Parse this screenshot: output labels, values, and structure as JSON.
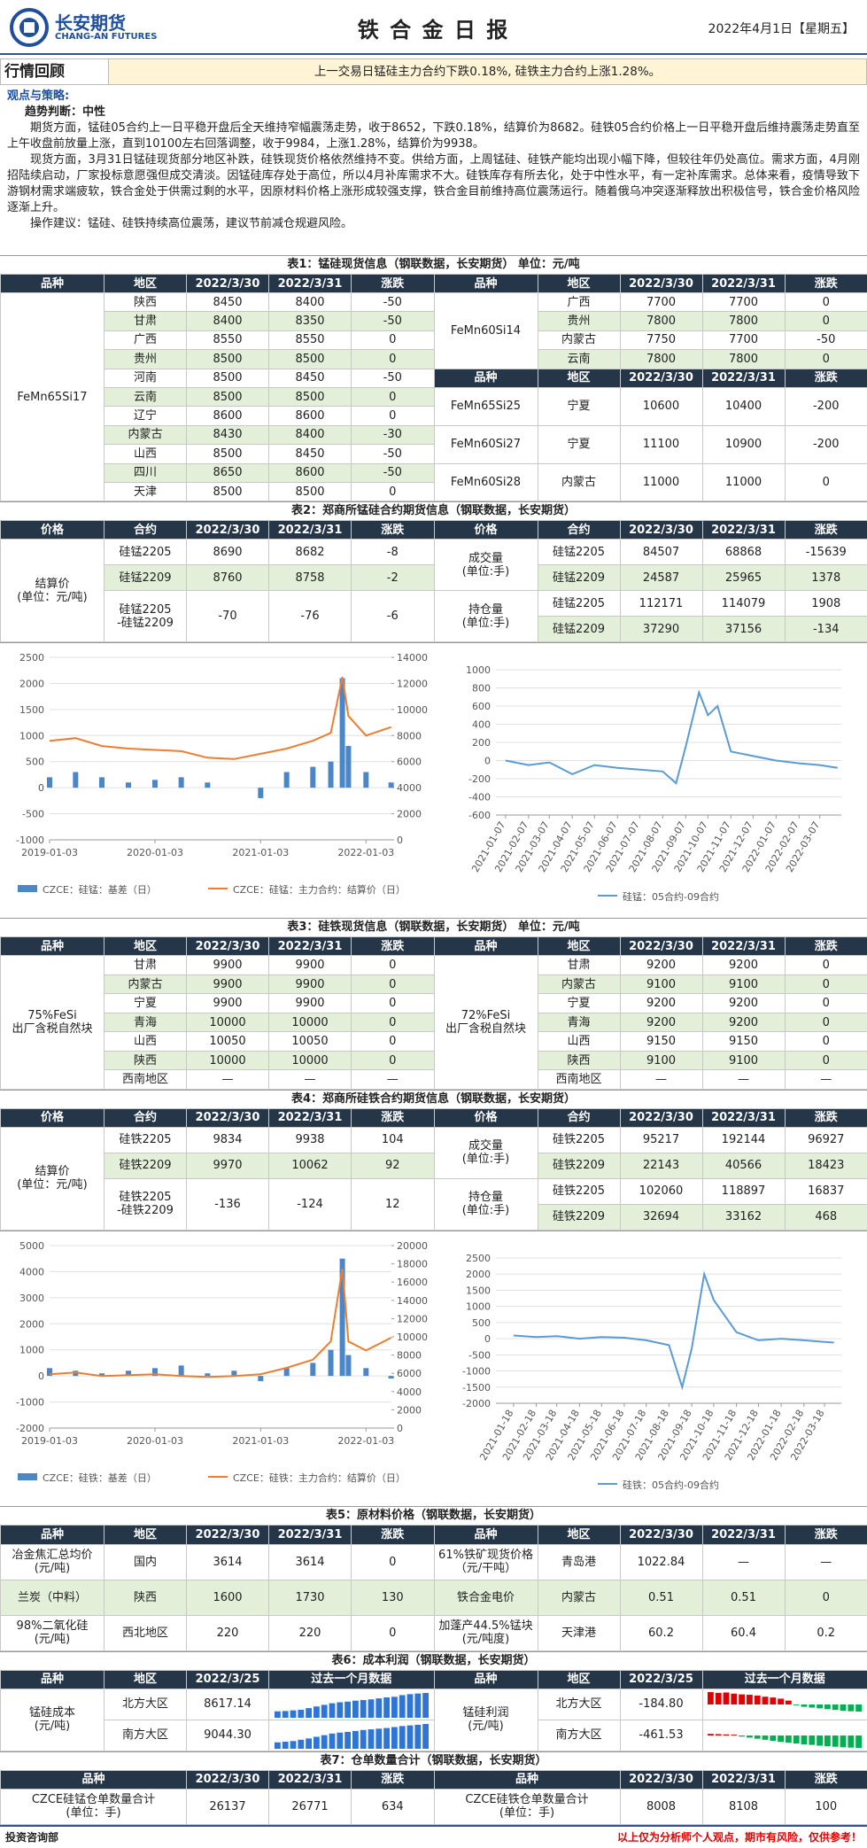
{
  "header": {
    "logo_cn": "长安期货",
    "logo_en": "CHANG-AN FUTURES",
    "title": "铁 合 金 日 报",
    "date": "2022年4月1日【星期五】"
  },
  "review": {
    "label": "行情回顾",
    "summary": "上一交易日锰硅主力合约下跌0.18%, 硅铁主力合约上涨1.28%。"
  },
  "views": {
    "heading": "观点与策略:",
    "judgement_label": "趋势判断：",
    "judgement": "中性",
    "paragraphs": [
      "期货方面，锰硅05合约上一日平稳开盘后全天维持窄幅震荡走势，收于8652，下跌0.18%，结算价为8682。硅铁05合约价格上一日平稳开盘后维持震荡走势直至上午收盘前放量上涨，直到10100左右回落调整，收于9984，上涨1.28%，结算价为9938。",
      "现货方面，3月31日锰硅现货部分地区补跌，硅铁现货价格依然维持不变。供给方面，上周锰硅、硅铁产能均出现小幅下降，但较往年仍处高位。需求方面，4月刚招陆续启动，厂家投标意愿强但成交清淡。因锰硅库存处于高位，所以4月补库需求不大。硅铁库存有所去化，处于中性水平，有一定补库需求。总体来看，疫情导致下游钢材需求端疲软，铁合金处于供需过剩的水平，因原材料价格上涨形成较强支撑，铁合金目前维持高位震荡运行。随着俄乌冲突逐渐释放出积极信号，铁合金价格风险逐渐上升。",
      "操作建议：锰硅、硅铁持续高位震荡，建议节前减仓规避风险。"
    ]
  },
  "table1": {
    "caption": "表1：锰硅现货信息（钢联数据，长安期货）  单位：元/吨",
    "header": [
      "品种",
      "地区",
      "2022/3/30",
      "2022/3/31",
      "涨跌"
    ],
    "left": {
      "product": "FeMn65Si17",
      "rows": [
        [
          "陕西",
          8450,
          8400,
          -50
        ],
        [
          "甘肃",
          8400,
          8350,
          -50
        ],
        [
          "广西",
          8550,
          8550,
          0
        ],
        [
          "贵州",
          8500,
          8500,
          0
        ],
        [
          "河南",
          8500,
          8450,
          -50
        ],
        [
          "云南",
          8500,
          8500,
          0
        ],
        [
          "辽宁",
          8600,
          8600,
          0
        ],
        [
          "内蒙古",
          8430,
          8400,
          -30
        ],
        [
          "山西",
          8500,
          8450,
          -50
        ],
        [
          "四川",
          8650,
          8600,
          -50
        ],
        [
          "天津",
          8500,
          8500,
          0
        ]
      ]
    },
    "right_top": {
      "product": "FeMn60Si14",
      "rows": [
        [
          "广西",
          7700,
          7700,
          0
        ],
        [
          "贵州",
          7800,
          7800,
          0
        ],
        [
          "内蒙古",
          7750,
          7700,
          -50
        ],
        [
          "云南",
          7800,
          7800,
          0
        ]
      ]
    },
    "right_bottom": [
      {
        "product": "FeMn65Si25",
        "rows": [
          [
            "宁夏",
            10600,
            10400,
            -200
          ]
        ]
      },
      {
        "product": "FeMn60Si27",
        "rows": [
          [
            "宁夏",
            11100,
            10900,
            -200
          ]
        ]
      },
      {
        "product": "FeMn60Si28",
        "rows": [
          [
            "内蒙古",
            11000,
            11000,
            0
          ]
        ]
      }
    ]
  },
  "table2": {
    "caption": "表2：郑商所锰硅合约期货信息（钢联数据，长安期货）",
    "header": [
      "价格",
      "合约",
      "2022/3/30",
      "2022/3/31",
      "涨跌"
    ],
    "left": {
      "label": "结算价\n(单位：元/吨)",
      "rows": [
        [
          "硅锰2205",
          8690,
          8682,
          -8
        ],
        [
          "硅锰2209",
          8760,
          8758,
          -2
        ],
        [
          "硅锰2205\n-硅锰2209",
          -70,
          -76,
          -6
        ]
      ]
    },
    "right": [
      {
        "label": "成交量\n(单位:手)",
        "rows": [
          [
            "硅锰2205",
            84507,
            68868,
            -15639
          ],
          [
            "硅锰2209",
            24587,
            25965,
            1378
          ]
        ]
      },
      {
        "label": "持仓量\n(单位:手)",
        "rows": [
          [
            "硅锰2205",
            112171,
            114079,
            1908
          ],
          [
            "硅锰2209",
            37290,
            37156,
            -134
          ]
        ]
      }
    ]
  },
  "charts": [
    {
      "type": "combo",
      "xlim": [
        "2019-01-03",
        "2022-04-01"
      ],
      "xticks": [
        "2019-01-03",
        "2020-01-03",
        "2021-01-03",
        "2022-01-03"
      ],
      "ylim": [
        -1000,
        2500
      ],
      "yticks": [
        -1000,
        -500,
        0,
        500,
        1000,
        1500,
        2000,
        2500
      ],
      "y2lim": [
        0,
        14000
      ],
      "y2ticks": [
        0,
        2000,
        4000,
        6000,
        8000,
        10000,
        12000,
        14000
      ],
      "grid": true,
      "x": [
        "2019-01-03",
        "2019-04-03",
        "2019-07-03",
        "2019-10-03",
        "2020-01-03",
        "2020-04-03",
        "2020-07-03",
        "2020-10-03",
        "2021-01-03",
        "2021-04-03",
        "2021-07-03",
        "2021-09-03",
        "2021-10-13",
        "2021-11-03",
        "2022-01-03",
        "2022-03-31"
      ],
      "series": [
        {
          "name": "CZCE：硅锰：基差（日）",
          "type": "bar",
          "color": "#4a86c8",
          "values": [
            200,
            300,
            200,
            100,
            150,
            200,
            100,
            0,
            -200,
            300,
            400,
            500,
            2100,
            800,
            300,
            100
          ]
        },
        {
          "name": "CZCE：硅锰：主力合约：结算价（日）",
          "type": "line",
          "axis": "y2",
          "color": "#ed7d31",
          "values": [
            7600,
            7800,
            7200,
            7000,
            6900,
            6800,
            6300,
            6200,
            6600,
            7000,
            7600,
            8200,
            12500,
            9500,
            8000,
            8650
          ]
        }
      ]
    },
    {
      "type": "line",
      "xlim": [
        "2020-12-25",
        "2022-04-05"
      ],
      "xticks": [
        "2021-01-07",
        "2021-02-07",
        "2021-03-07",
        "2021-04-07",
        "2021-05-07",
        "2021-06-07",
        "2021-07-07",
        "2021-08-07",
        "2021-09-07",
        "2021-10-07",
        "2021-11-07",
        "2021-12-07",
        "2022-01-07",
        "2022-02-07",
        "2022-03-07"
      ],
      "ylim": [
        -600,
        1000
      ],
      "yticks": [
        -600,
        -400,
        -200,
        0,
        200,
        400,
        600,
        800,
        1000
      ],
      "grid": true,
      "x": [
        "2021-01-07",
        "2021-02-07",
        "2021-03-07",
        "2021-04-07",
        "2021-05-07",
        "2021-06-07",
        "2021-07-07",
        "2021-08-07",
        "2021-08-25",
        "2021-09-07",
        "2021-09-25",
        "2021-10-07",
        "2021-10-20",
        "2021-11-07",
        "2021-12-07",
        "2022-01-07",
        "2022-02-07",
        "2022-03-07",
        "2022-03-31"
      ],
      "series": [
        {
          "name": "硅锰：05合约-09合约",
          "color": "#5b9bd5",
          "values": [
            0,
            -50,
            -20,
            -150,
            -50,
            -80,
            -100,
            -120,
            -250,
            150,
            750,
            500,
            600,
            100,
            50,
            0,
            -30,
            -50,
            -80
          ]
        }
      ]
    },
    {
      "type": "combo",
      "xlim": [
        "2019-01-03",
        "2022-04-01"
      ],
      "xticks": [
        "2019-01-03",
        "2020-01-03",
        "2021-01-03",
        "2022-01-03"
      ],
      "ylim": [
        -2000,
        5000
      ],
      "yticks": [
        -2000,
        -1000,
        0,
        1000,
        2000,
        3000,
        4000,
        5000
      ],
      "y2lim": [
        0,
        20000
      ],
      "y2ticks": [
        0,
        2000,
        4000,
        6000,
        8000,
        10000,
        12000,
        14000,
        16000,
        18000,
        20000
      ],
      "grid": true,
      "x": [
        "2019-01-03",
        "2019-04-03",
        "2019-07-03",
        "2019-10-03",
        "2020-01-03",
        "2020-04-03",
        "2020-07-03",
        "2020-10-03",
        "2021-01-03",
        "2021-04-03",
        "2021-07-03",
        "2021-09-03",
        "2021-10-13",
        "2021-11-03",
        "2022-01-03",
        "2022-03-31"
      ],
      "series": [
        {
          "name": "CZCE：硅铁：基差（日）",
          "type": "bar",
          "color": "#4a86c8",
          "values": [
            300,
            200,
            100,
            200,
            300,
            400,
            100,
            200,
            -200,
            300,
            500,
            1000,
            4500,
            800,
            300,
            -100
          ]
        },
        {
          "name": "CZCE：硅铁：主力合约：结算价（日）",
          "type": "line",
          "axis": "y2",
          "color": "#ed7d31",
          "values": [
            5900,
            6100,
            5700,
            5800,
            5900,
            5700,
            5600,
            5700,
            5900,
            6600,
            7500,
            9500,
            17500,
            9500,
            8500,
            9900
          ]
        }
      ]
    },
    {
      "type": "line",
      "xlim": [
        "2020-12-25",
        "2022-04-10"
      ],
      "xticks": [
        "2021-01-18",
        "2021-02-18",
        "2021-03-18",
        "2021-04-18",
        "2021-05-18",
        "2021-06-18",
        "2021-07-18",
        "2021-08-18",
        "2021-09-18",
        "2021-10-18",
        "2021-11-18",
        "2021-12-18",
        "2022-01-18",
        "2022-02-18",
        "2022-03-18"
      ],
      "ylim": [
        -2000,
        2500
      ],
      "yticks": [
        -2000,
        -1500,
        -1000,
        -500,
        0,
        500,
        1000,
        1500,
        2000,
        2500
      ],
      "grid": true,
      "x": [
        "2021-01-18",
        "2021-02-18",
        "2021-03-18",
        "2021-04-18",
        "2021-05-18",
        "2021-06-18",
        "2021-07-18",
        "2021-08-18",
        "2021-09-05",
        "2021-09-18",
        "2021-10-05",
        "2021-10-18",
        "2021-11-18",
        "2021-12-18",
        "2022-01-18",
        "2022-02-18",
        "2022-03-18",
        "2022-03-31"
      ],
      "series": [
        {
          "name": "硅铁：05合约-09合约",
          "color": "#5b9bd5",
          "values": [
            100,
            50,
            80,
            0,
            50,
            30,
            -50,
            -200,
            -1500,
            -300,
            2000,
            1200,
            200,
            -50,
            0,
            -50,
            -100,
            -120
          ]
        }
      ]
    }
  ],
  "table3": {
    "caption": "表3：硅铁现货信息（钢联数据，长安期货）  单位：元/吨",
    "header": [
      "品种",
      "地区",
      "2022/3/30",
      "2022/3/31",
      "涨跌"
    ],
    "left": {
      "product": "75%FeSi\n出厂含税自然块",
      "rows": [
        [
          "甘肃",
          9900,
          9900,
          0
        ],
        [
          "内蒙古",
          9900,
          9900,
          0
        ],
        [
          "宁夏",
          9900,
          9900,
          0
        ],
        [
          "青海",
          10000,
          10000,
          0
        ],
        [
          "山西",
          10050,
          10050,
          0
        ],
        [
          "陕西",
          10000,
          10000,
          0
        ],
        [
          "西南地区",
          "—",
          "—",
          "—"
        ]
      ]
    },
    "right": {
      "product": "72%FeSi\n出厂含税自然块",
      "rows": [
        [
          "甘肃",
          9200,
          9200,
          0
        ],
        [
          "内蒙古",
          9100,
          9100,
          0
        ],
        [
          "宁夏",
          9200,
          9200,
          0
        ],
        [
          "青海",
          9200,
          9200,
          0
        ],
        [
          "山西",
          9150,
          9150,
          0
        ],
        [
          "陕西",
          9100,
          9100,
          0
        ],
        [
          "西南地区",
          "—",
          "—",
          "—"
        ]
      ]
    }
  },
  "table4": {
    "caption": "表4：郑商所硅铁合约期货信息（钢联数据，长安期货）",
    "header": [
      "价格",
      "合约",
      "2022/3/30",
      "2022/3/31",
      "涨跌"
    ],
    "left": {
      "label": "结算价\n(单位：元/吨)",
      "rows": [
        [
          "硅铁2205",
          9834,
          9938,
          104
        ],
        [
          "硅铁2209",
          9970,
          10062,
          92
        ],
        [
          "硅铁2205\n-硅铁2209",
          -136,
          -124,
          12
        ]
      ]
    },
    "right": [
      {
        "label": "成交量\n(单位:手)",
        "rows": [
          [
            "硅铁2205",
            95217,
            192144,
            96927
          ],
          [
            "硅铁2209",
            22143,
            40566,
            18423
          ]
        ]
      },
      {
        "label": "持仓量\n(单位:手)",
        "rows": [
          [
            "硅铁2205",
            102060,
            118897,
            16837
          ],
          [
            "硅铁2209",
            32694,
            33162,
            468
          ]
        ]
      }
    ]
  },
  "table5": {
    "caption": "表5：原材料价格（钢联数据，长安期货）",
    "header": [
      "品种",
      "地区",
      "2022/3/30",
      "2022/3/31",
      "涨跌"
    ],
    "left": [
      [
        "冶金焦汇总均价\n(元/吨)",
        "国内",
        3614,
        3614,
        0
      ],
      [
        "兰炭（中料）",
        "陕西",
        1600,
        1730,
        130
      ],
      [
        "98%二氧化硅\n(元/吨)",
        "西北地区",
        220,
        220,
        0
      ]
    ],
    "right": [
      [
        "61%铁矿现货价格（元/干吨）",
        "青岛港",
        1022.84,
        "—",
        "—"
      ],
      [
        "铁合金电价",
        "内蒙古",
        0.51,
        0.51,
        0
      ],
      [
        "加蓬产44.5%锰块\n(元/吨度)",
        "天津港",
        60.2,
        60.4,
        0.2
      ]
    ]
  },
  "table6": {
    "caption": "表6：成本利润（钢联数据，长安期货）",
    "header": [
      "品种",
      "地区",
      "2022/3/25",
      "过去一个月数据"
    ],
    "left": {
      "label": "锰硅成本\n(元/吨)",
      "rows": [
        [
          "北方大区",
          8617.14
        ],
        [
          "南方大区",
          "9044.30"
        ]
      ],
      "sparklines": [
        {
          "type": "bar",
          "color": "#2e75d6",
          "values": [
            8050,
            8060,
            8080,
            8100,
            8150,
            8200,
            8250,
            8300,
            8330,
            8350,
            8380,
            8400,
            8420,
            8450,
            8480,
            8500,
            8550,
            8580,
            8600,
            8617.14
          ]
        },
        {
          "type": "bar",
          "color": "#2e75d6",
          "values": [
            8480,
            8500,
            8520,
            8560,
            8600,
            8650,
            8700,
            8750,
            8780,
            8800,
            8830,
            8860,
            8880,
            8900,
            8920,
            8950,
            8980,
            9000,
            9020,
            9044.3
          ]
        }
      ]
    },
    "right": {
      "label": "锰硅利润\n(元/吨)",
      "rows": [
        [
          "北方大区",
          "-184.80"
        ],
        [
          "南方大区",
          -461.53
        ]
      ],
      "sparklines": [
        {
          "type": "bar",
          "color": "#e00000",
          "negative_color": "#00b050",
          "values": [
            320,
            300,
            310,
            280,
            260,
            250,
            230,
            200,
            180,
            150,
            100,
            -20,
            -60,
            -80,
            -100,
            -120,
            -140,
            -160,
            -175,
            -184.8
          ]
        },
        {
          "type": "bar",
          "color": "#e00000",
          "negative_color": "#00b050",
          "values": [
            60,
            50,
            40,
            30,
            -40,
            -80,
            -120,
            -160,
            -200,
            -240,
            -270,
            -300,
            -330,
            -350,
            -380,
            -400,
            -420,
            -440,
            -450,
            -461.53
          ]
        }
      ]
    }
  },
  "table7": {
    "caption": "表7：仓单数量合计（钢联数据，长安期货）",
    "header": [
      "品种",
      "2022/3/30",
      "2022/3/31",
      "涨跌"
    ],
    "left": [
      "CZCE硅锰仓单数量合计\n(单位：手)",
      26137,
      26771,
      634
    ],
    "right": [
      "CZCE硅铁仓单数量合计\n(单位：手)",
      8008,
      8108,
      100
    ]
  },
  "footer": {
    "left": "投资咨询部",
    "right": "以上仅为分析师个人观点，期市有风险，仅供参考！"
  }
}
